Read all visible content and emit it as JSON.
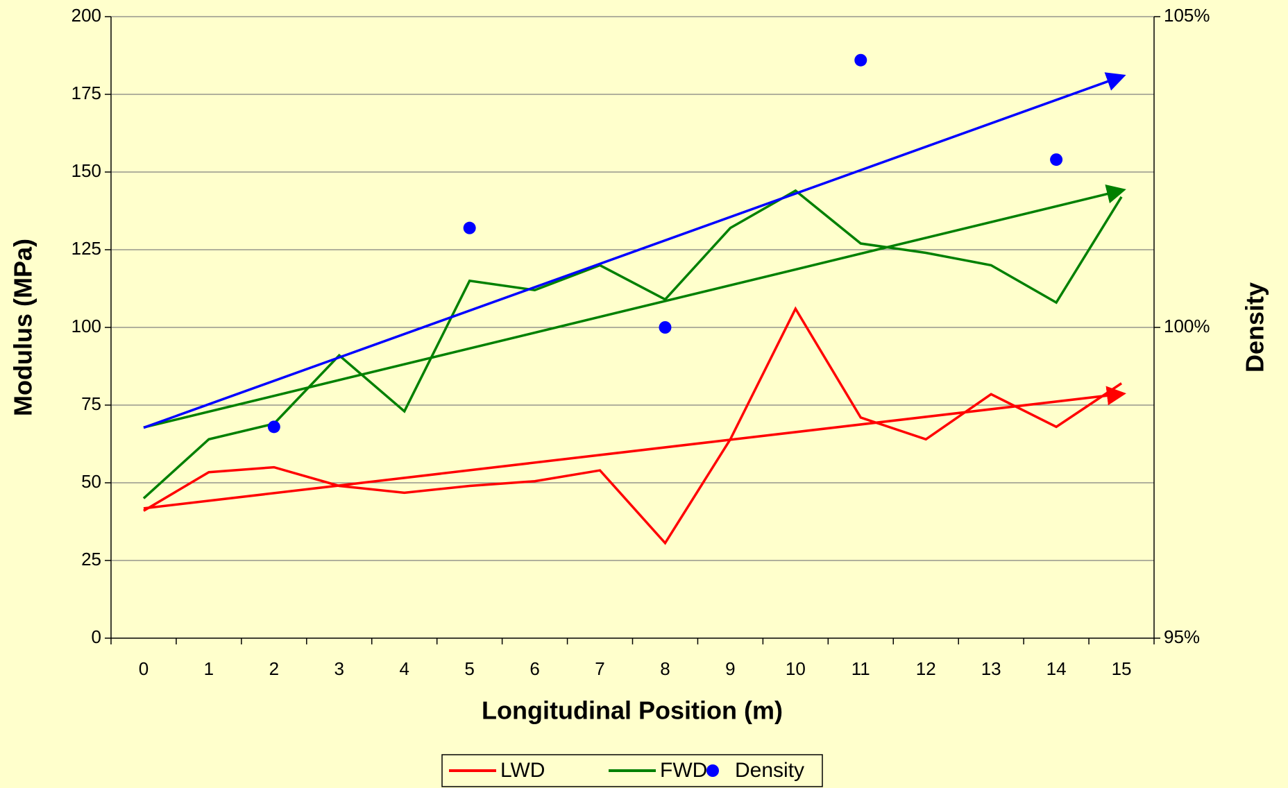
{
  "chart_data": {
    "type": "line",
    "x_label": "Longitudinal Position (m)",
    "y_label": "Modulus (MPa)",
    "y2_label": "Density",
    "categories": [
      "0",
      "1",
      "2",
      "3",
      "4",
      "5",
      "6",
      "7",
      "8",
      "9",
      "10",
      "11",
      "12",
      "13",
      "14",
      "15"
    ],
    "series": [
      {
        "name": "LWD",
        "color": "#ff0000",
        "values": [
          41,
          53.4,
          55,
          49,
          46.8,
          49,
          50.5,
          54,
          30.6,
          64,
          106,
          71,
          64,
          78.5,
          68,
          82
        ]
      },
      {
        "name": "FWD",
        "color": "#008000",
        "values": [
          45,
          64,
          69,
          91,
          73,
          115,
          112,
          120,
          109,
          132,
          144,
          127,
          124,
          120,
          108,
          142
        ]
      },
      {
        "name": "Density",
        "color": "#0000ff",
        "type": "scatter",
        "axis": "y2",
        "values": [
          null,
          null,
          98.4,
          null,
          null,
          101.6,
          null,
          null,
          100,
          null,
          null,
          104.3,
          null,
          null,
          102.7,
          null
        ]
      }
    ],
    "ylim": [
      0,
      200
    ],
    "yticks": [
      0,
      25,
      50,
      75,
      100,
      125,
      150,
      175,
      200
    ],
    "y2lim": [
      95,
      105
    ],
    "y2ticks": [
      {
        "value": 95,
        "label": "95%"
      },
      {
        "value": 100,
        "label": "100%"
      },
      {
        "value": 105,
        "label": "105%"
      }
    ],
    "grid": true,
    "trendlines": true,
    "legend": "bottom"
  }
}
